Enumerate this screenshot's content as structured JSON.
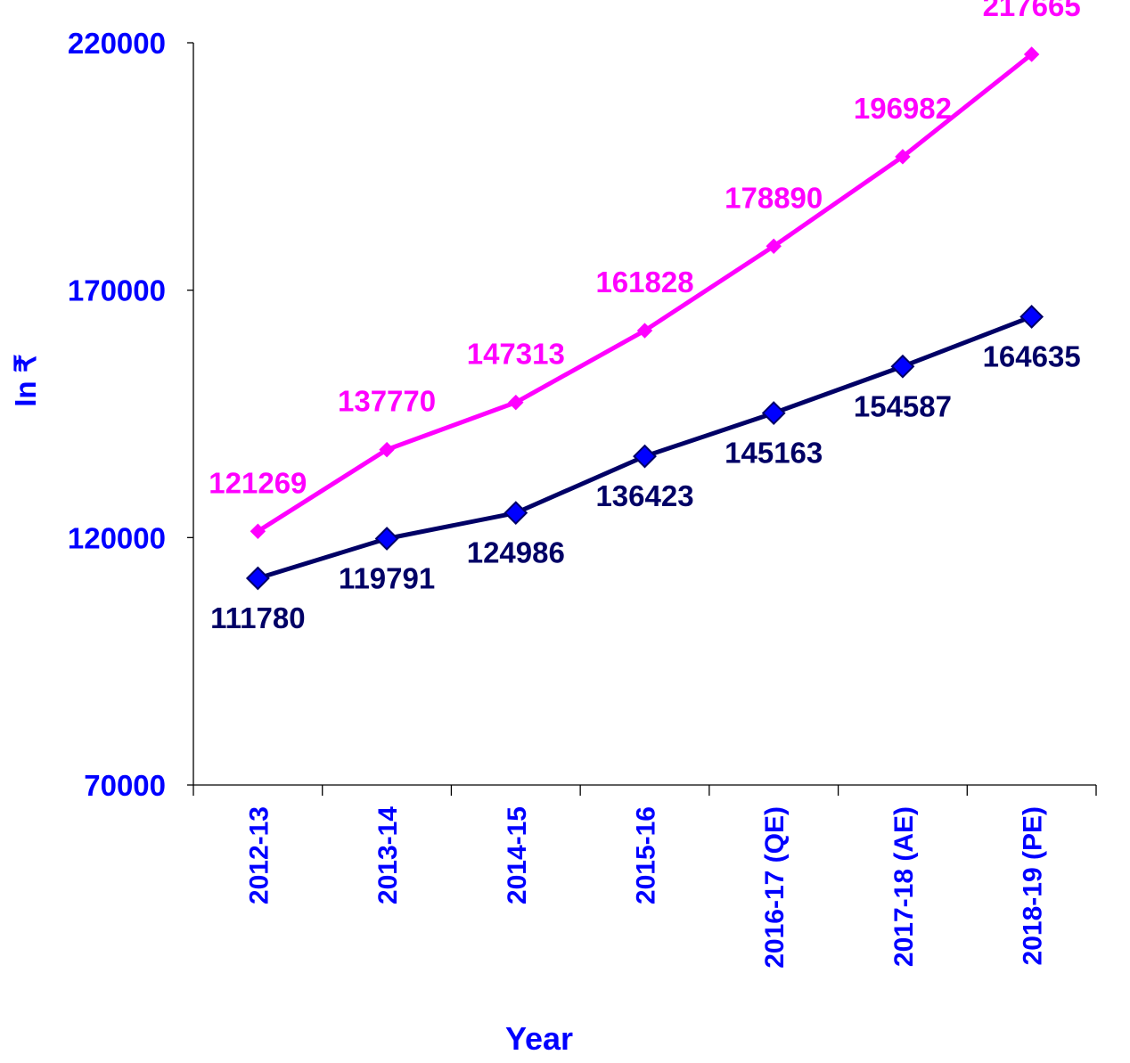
{
  "chart_data": {
    "type": "line",
    "categories": [
      "2012-13",
      "2013-14",
      "2014-15",
      "2015-16",
      "2016-17 (QE)",
      "2017-18 (AE)",
      "2018-19 (PE)"
    ],
    "series": [
      {
        "values": [
          121269,
          137770,
          147313,
          161828,
          178890,
          196982,
          217665
        ],
        "color": "#ff00ff",
        "marker": "small-diamond",
        "label_position": "above"
      },
      {
        "values": [
          111780,
          119791,
          124986,
          136423,
          145163,
          154587,
          164635
        ],
        "color": "#000066",
        "marker_fill": "#0000ff",
        "marker": "large-diamond",
        "label_position": "below"
      }
    ],
    "xlabel": "Year",
    "ylabel": "In ₹",
    "ylim": [
      70000,
      220000
    ],
    "yticks": [
      70000,
      120000,
      170000,
      220000
    ],
    "ytick_labels": [
      "70000",
      "120000",
      "170000",
      "220000"
    ],
    "grid": false,
    "legend": "none",
    "axis_label_color": "#0000ff"
  }
}
